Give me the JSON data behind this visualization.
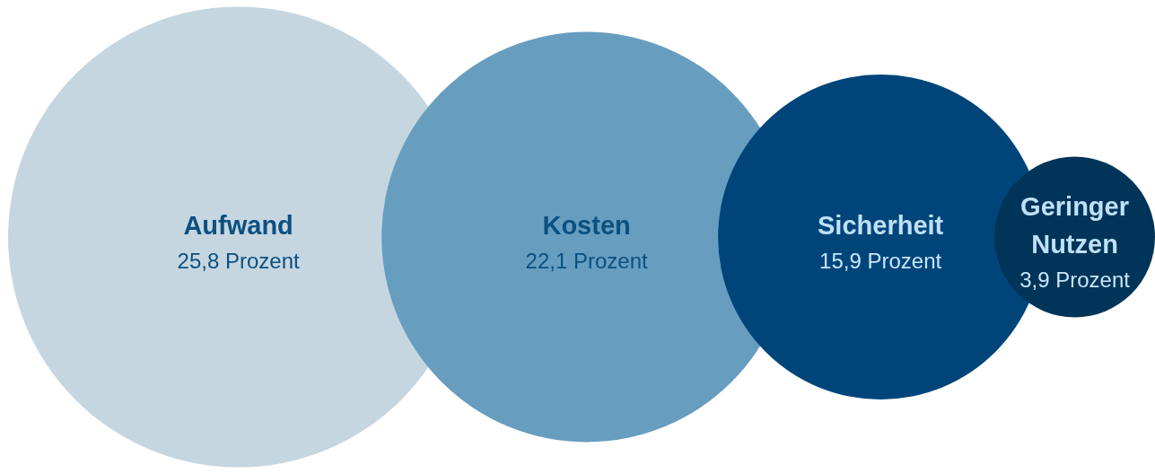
{
  "chart_data": {
    "type": "other",
    "categories": [
      "Aufwand",
      "Kosten",
      "Sicherheit",
      "Geringer Nutzen"
    ],
    "values": [
      25.8,
      22.1,
      15.9,
      3.9
    ],
    "value_labels": [
      "25,8 Prozent",
      "22,1 Prozent",
      "15,9 Prozent",
      "3,9 Prozent"
    ],
    "colors": [
      "#c5d6e0",
      "#679dbf",
      "#00457a",
      "#003458"
    ]
  }
}
